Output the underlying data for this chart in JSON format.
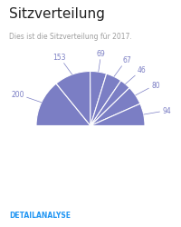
{
  "title": "Sitzverteilung",
  "subtitle": "Dies ist die Sitzverteilung für 2017.",
  "values": [
    200,
    153,
    69,
    67,
    46,
    80,
    94
  ],
  "labels": [
    "200",
    "153",
    "69",
    "67",
    "46",
    "80",
    "94"
  ],
  "slice_color": "#7b7ec4",
  "line_color": "#ffffff",
  "background_color": "#ffffff",
  "title_color": "#212121",
  "subtitle_color": "#9e9e9e",
  "label_color": "#7b7ec4",
  "link_color": "#2196F3",
  "link_text": "DETAILANALYSE",
  "title_fontsize": 11,
  "subtitle_fontsize": 5.5,
  "label_fontsize": 5.5,
  "link_fontsize": 5.5
}
